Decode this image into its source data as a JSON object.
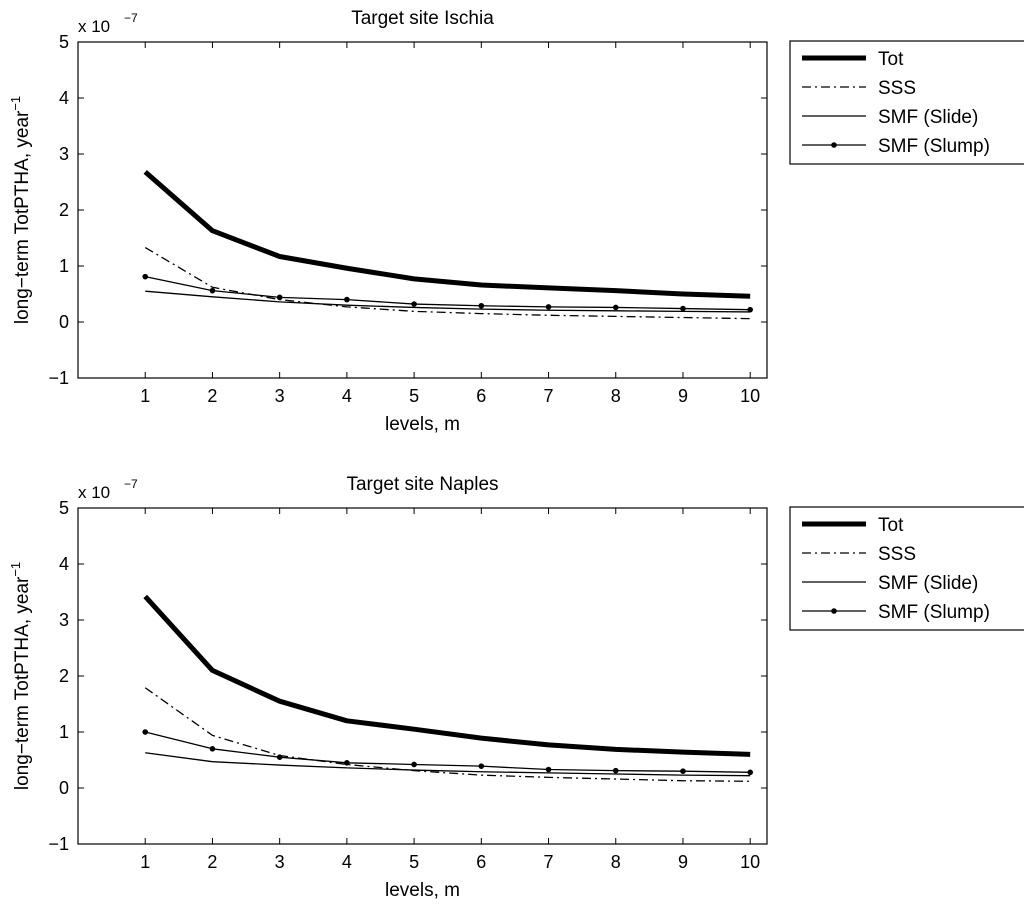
{
  "chart_data": [
    {
      "type": "line",
      "title": "Target site Ischia",
      "xlabel": "levels, m",
      "ylabel": "long−term TotPTHA, year",
      "ylabel_sup": "−1",
      "y_multiplier": "x 10",
      "y_multiplier_exp": "−7",
      "x": [
        1,
        2,
        3,
        4,
        5,
        6,
        7,
        8,
        9,
        10
      ],
      "xlim": [
        0,
        10.25
      ],
      "ylim": [
        -1,
        5
      ],
      "xticks": [
        1,
        2,
        3,
        4,
        5,
        6,
        7,
        8,
        9,
        10
      ],
      "yticks": [
        -1,
        0,
        1,
        2,
        3,
        4,
        5
      ],
      "ytick_labels": [
        "−1",
        "0",
        "1",
        "2",
        "3",
        "4",
        "5"
      ],
      "grid": false,
      "legend_position": "outside-right-top",
      "series": [
        {
          "name": "Tot",
          "style": "thick",
          "values": [
            2.68,
            1.63,
            1.17,
            0.96,
            0.77,
            0.66,
            0.61,
            0.56,
            0.5,
            0.46
          ]
        },
        {
          "name": "SSS",
          "style": "dashdot",
          "values": [
            1.33,
            0.62,
            0.4,
            0.27,
            0.19,
            0.15,
            0.12,
            0.1,
            0.08,
            0.06
          ]
        },
        {
          "name": "SMF (Slide)",
          "style": "thin",
          "values": [
            0.55,
            0.45,
            0.36,
            0.3,
            0.26,
            0.23,
            0.21,
            0.2,
            0.19,
            0.18
          ]
        },
        {
          "name": "SMF (Slump)",
          "style": "dots",
          "values": [
            0.81,
            0.56,
            0.44,
            0.4,
            0.32,
            0.29,
            0.27,
            0.26,
            0.24,
            0.22
          ]
        }
      ]
    },
    {
      "type": "line",
      "title": "Target site Naples",
      "xlabel": "levels, m",
      "ylabel": "long−term TotPTHA, year",
      "ylabel_sup": "−1",
      "y_multiplier": "x 10",
      "y_multiplier_exp": "−7",
      "x": [
        1,
        2,
        3,
        4,
        5,
        6,
        7,
        8,
        9,
        10
      ],
      "xlim": [
        0,
        10.25
      ],
      "ylim": [
        -1,
        5
      ],
      "xticks": [
        1,
        2,
        3,
        4,
        5,
        6,
        7,
        8,
        9,
        10
      ],
      "yticks": [
        -1,
        0,
        1,
        2,
        3,
        4,
        5
      ],
      "ytick_labels": [
        "−1",
        "0",
        "1",
        "2",
        "3",
        "4",
        "5"
      ],
      "grid": false,
      "legend_position": "outside-right-top",
      "series": [
        {
          "name": "Tot",
          "style": "thick",
          "values": [
            3.42,
            2.1,
            1.55,
            1.2,
            1.05,
            0.89,
            0.77,
            0.69,
            0.64,
            0.6
          ]
        },
        {
          "name": "SSS",
          "style": "dashdot",
          "values": [
            1.79,
            0.94,
            0.58,
            0.42,
            0.31,
            0.23,
            0.19,
            0.16,
            0.13,
            0.12
          ]
        },
        {
          "name": "SMF (Slide)",
          "style": "thin",
          "values": [
            0.63,
            0.47,
            0.41,
            0.36,
            0.32,
            0.29,
            0.27,
            0.25,
            0.23,
            0.22
          ]
        },
        {
          "name": "SMF (Slump)",
          "style": "dots",
          "values": [
            1.0,
            0.7,
            0.55,
            0.45,
            0.42,
            0.39,
            0.33,
            0.31,
            0.3,
            0.28
          ]
        }
      ]
    }
  ]
}
